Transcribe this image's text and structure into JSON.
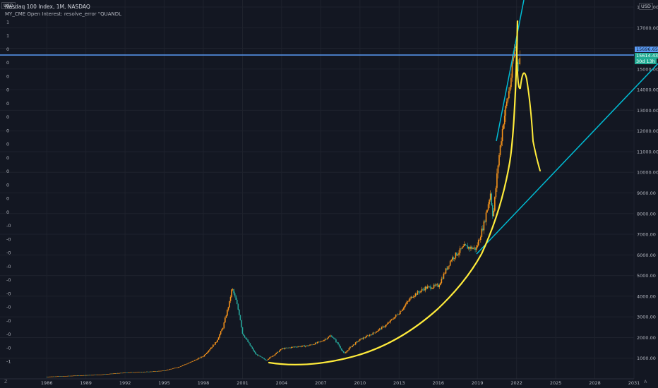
{
  "header": {
    "title": "Nasdaq 100 Index, 1M, NASDAQ",
    "subtitle": "MY_CME Open Interest: resolve_error \"QUANDL",
    "currency_left": "USD",
    "currency_right": "USD"
  },
  "price_tags": {
    "line_price": "15696.65",
    "current_price": "15614.43",
    "countdown": "30d 13h"
  },
  "corner_labels": {
    "left": "Z",
    "right": "A"
  },
  "colors": {
    "background": "#131722",
    "grid": "#1e222d",
    "up_candle": "#f7931a",
    "down_candle": "#26a69a",
    "horizontal_line": "#5b9cf6",
    "trend_line": "#00bcd4",
    "drawing": "#ffeb3b"
  },
  "chart_data": {
    "type": "line",
    "title": "Nasdaq 100 Index, 1M, NASDAQ",
    "xlabel": "",
    "ylabel": "",
    "x_ticks": [
      "1986",
      "1989",
      "1992",
      "1995",
      "1998",
      "2001",
      "2004",
      "2007",
      "2010",
      "2013",
      "2016",
      "2019",
      "2022",
      "2025",
      "2028",
      "2031"
    ],
    "y_ticks": [
      "1000.00",
      "2000.00",
      "3000.00",
      "4000.00",
      "5000.00",
      "6000.00",
      "7000.00",
      "8000.00",
      "9000.00",
      "10000.00",
      "11000.00",
      "12000.00",
      "13000.00",
      "14000.00",
      "15000.00",
      "16000.00",
      "17000.00",
      "18000.00"
    ],
    "left_ticks": [
      "1",
      "1",
      "0",
      "0",
      "0",
      "0",
      "0",
      "0",
      "0",
      "0",
      "0",
      "0",
      "0",
      "0",
      "0",
      "-0",
      "-0",
      "-0",
      "-0",
      "-0",
      "-0",
      "-0",
      "-0",
      "-0",
      "-0",
      "-1"
    ],
    "xlim": [
      1983.5,
      2031
    ],
    "ylim": [
      0,
      18000
    ],
    "series": [
      {
        "x": [
          1986,
          1988,
          1990,
          1992,
          1994,
          1995,
          1996,
          1997,
          1998,
          1999,
          1999.5,
          2000,
          2000.2,
          2000.5,
          2000.8,
          2001,
          2001.5,
          2002,
          2002.8,
          2003.5,
          2004,
          2005,
          2006,
          2007,
          2007.8,
          2008.3,
          2008.8,
          2009.2,
          2010,
          2011,
          2012,
          2013,
          2014,
          2015,
          2016,
          2017,
          2018,
          2018.9,
          2019.5,
          2020,
          2020.2,
          2020.6,
          2021,
          2021.5,
          2021.9,
          2022,
          2022.3
        ],
        "values": [
          100,
          150,
          200,
          300,
          350,
          400,
          550,
          800,
          1100,
          1800,
          2500,
          3700,
          4400,
          3800,
          3000,
          2200,
          1700,
          1200,
          900,
          1200,
          1450,
          1550,
          1600,
          1800,
          2100,
          1700,
          1200,
          1500,
          1900,
          2200,
          2600,
          3200,
          4000,
          4400,
          4500,
          5800,
          6400,
          6300,
          7500,
          9000,
          7800,
          10500,
          12500,
          14200,
          16300,
          15300,
          15614
        ]
      }
    ]
  }
}
